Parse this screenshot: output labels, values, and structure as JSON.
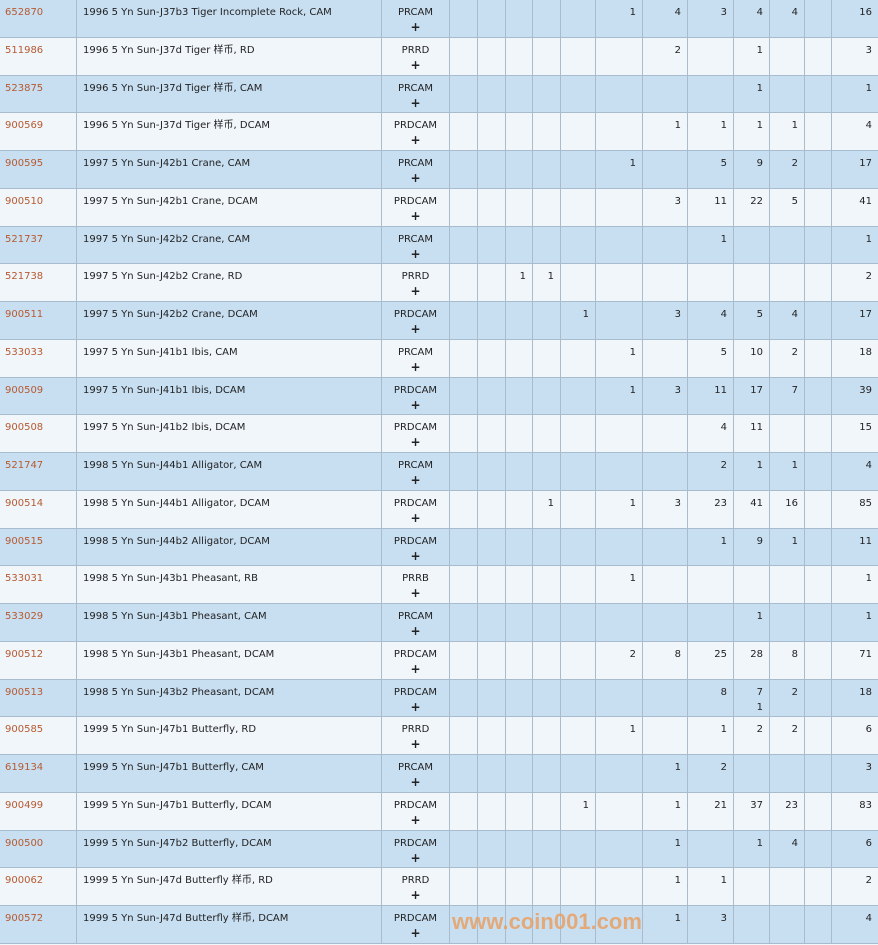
{
  "colors": {
    "row_odd": "#c8dff2",
    "row_even": "#f1f6fb",
    "link": "#b65a30",
    "border": "#a9bccd",
    "watermark": "#e8a063"
  },
  "rows": [
    {
      "id": "652870",
      "desc": "1996 5 Yn Sun-J37b3 Tiger Incomplete Rock, CAM",
      "des": "PRCAM",
      "plus": "+",
      "counts": [
        "",
        "",
        "",
        "",
        "",
        "1",
        "4",
        "3",
        "4",
        "4",
        ""
      ],
      "total": "16"
    },
    {
      "id": "511986",
      "desc": "1996 5 Yn Sun-J37d Tiger 样币, RD",
      "des": "PRRD",
      "plus": "+",
      "counts": [
        "",
        "",
        "",
        "",
        "",
        "",
        "2",
        "",
        "1",
        "",
        ""
      ],
      "total": "3"
    },
    {
      "id": "523875",
      "desc": "1996 5 Yn Sun-J37d Tiger 样币, CAM",
      "des": "PRCAM",
      "plus": "+",
      "counts": [
        "",
        "",
        "",
        "",
        "",
        "",
        "",
        "",
        "1",
        "",
        ""
      ],
      "total": "1"
    },
    {
      "id": "900569",
      "desc": "1996 5 Yn Sun-J37d Tiger 样币, DCAM",
      "des": "PRDCAM",
      "plus": "+",
      "counts": [
        "",
        "",
        "",
        "",
        "",
        "",
        "1",
        "1",
        "1",
        "1",
        ""
      ],
      "total": "4"
    },
    {
      "id": "900595",
      "desc": "1997 5 Yn Sun-J42b1 Crane, CAM",
      "des": "PRCAM",
      "plus": "+",
      "counts": [
        "",
        "",
        "",
        "",
        "",
        "1",
        "",
        "5",
        "9",
        "2",
        ""
      ],
      "total": "17"
    },
    {
      "id": "900510",
      "desc": "1997 5 Yn Sun-J42b1 Crane, DCAM",
      "des": "PRDCAM",
      "plus": "+",
      "counts": [
        "",
        "",
        "",
        "",
        "",
        "",
        "3",
        "11",
        "22",
        "5",
        ""
      ],
      "total": "41"
    },
    {
      "id": "521737",
      "desc": "1997 5 Yn Sun-J42b2 Crane, CAM",
      "des": "PRCAM",
      "plus": "+",
      "counts": [
        "",
        "",
        "",
        "",
        "",
        "",
        "",
        "1",
        "",
        "",
        ""
      ],
      "total": "1"
    },
    {
      "id": "521738",
      "desc": "1997 5 Yn Sun-J42b2 Crane, RD",
      "des": "PRRD",
      "plus": "+",
      "counts": [
        "",
        "",
        "1",
        "1",
        "",
        "",
        "",
        "",
        "",
        "",
        ""
      ],
      "total": "2"
    },
    {
      "id": "900511",
      "desc": "1997 5 Yn Sun-J42b2 Crane, DCAM",
      "des": "PRDCAM",
      "plus": "+",
      "counts": [
        "",
        "",
        "",
        "",
        "1",
        "",
        "3",
        "4",
        "5",
        "4",
        ""
      ],
      "total": "17"
    },
    {
      "id": "533033",
      "desc": "1997 5 Yn Sun-J41b1 Ibis, CAM",
      "des": "PRCAM",
      "plus": "+",
      "counts": [
        "",
        "",
        "",
        "",
        "",
        "1",
        "",
        "5",
        "10",
        "2",
        ""
      ],
      "total": "18"
    },
    {
      "id": "900509",
      "desc": "1997 5 Yn Sun-J41b1 Ibis, DCAM",
      "des": "PRDCAM",
      "plus": "+",
      "counts": [
        "",
        "",
        "",
        "",
        "",
        "1",
        "3",
        "11",
        "17",
        "7",
        ""
      ],
      "total": "39"
    },
    {
      "id": "900508",
      "desc": "1997 5 Yn Sun-J41b2 Ibis, DCAM",
      "des": "PRDCAM",
      "plus": "+",
      "counts": [
        "",
        "",
        "",
        "",
        "",
        "",
        "",
        "4",
        "11",
        "",
        ""
      ],
      "total": "15"
    },
    {
      "id": "521747",
      "desc": "1998 5 Yn Sun-J44b1 Alligator, CAM",
      "des": "PRCAM",
      "plus": "+",
      "counts": [
        "",
        "",
        "",
        "",
        "",
        "",
        "",
        "2",
        "1",
        "1",
        ""
      ],
      "total": "4"
    },
    {
      "id": "900514",
      "desc": "1998 5 Yn Sun-J44b1 Alligator, DCAM",
      "des": "PRDCAM",
      "plus": "+",
      "counts": [
        "",
        "",
        "",
        "1",
        "",
        "1",
        "3",
        "23",
        "41",
        "16",
        ""
      ],
      "total": "85"
    },
    {
      "id": "900515",
      "desc": "1998 5 Yn Sun-J44b2 Alligator, DCAM",
      "des": "PRDCAM",
      "plus": "+",
      "counts": [
        "",
        "",
        "",
        "",
        "",
        "",
        "",
        "1",
        "9",
        "1",
        ""
      ],
      "total": "11"
    },
    {
      "id": "533031",
      "desc": "1998 5 Yn Sun-J43b1 Pheasant, RB",
      "des": "PRRB",
      "plus": "+",
      "counts": [
        "",
        "",
        "",
        "",
        "",
        "1",
        "",
        "",
        "",
        "",
        ""
      ],
      "total": "1"
    },
    {
      "id": "533029",
      "desc": "1998 5 Yn Sun-J43b1 Pheasant, CAM",
      "des": "PRCAM",
      "plus": "+",
      "counts": [
        "",
        "",
        "",
        "",
        "",
        "",
        "",
        "",
        "1",
        "",
        ""
      ],
      "total": "1"
    },
    {
      "id": "900512",
      "desc": "1998 5 Yn Sun-J43b1 Pheasant, DCAM",
      "des": "PRDCAM",
      "plus": "+",
      "counts": [
        "",
        "",
        "",
        "",
        "",
        "2",
        "8",
        "25",
        "28",
        "8",
        ""
      ],
      "total": "71"
    },
    {
      "id": "900513",
      "desc": "1998 5 Yn Sun-J43b2 Pheasant, DCAM",
      "des": "PRDCAM",
      "plus": "+",
      "counts": [
        "",
        "",
        "",
        "",
        "",
        "",
        "",
        "8",
        "7\n1",
        "2",
        ""
      ],
      "total": "18"
    },
    {
      "id": "900585",
      "desc": "1999 5 Yn Sun-J47b1 Butterfly, RD",
      "des": "PRRD",
      "plus": "+",
      "counts": [
        "",
        "",
        "",
        "",
        "",
        "1",
        "",
        "1",
        "2",
        "2",
        ""
      ],
      "total": "6"
    },
    {
      "id": "619134",
      "desc": "1999 5 Yn Sun-J47b1 Butterfly, CAM",
      "des": "PRCAM",
      "plus": "+",
      "counts": [
        "",
        "",
        "",
        "",
        "",
        "",
        "1",
        "2",
        "",
        "",
        ""
      ],
      "total": "3"
    },
    {
      "id": "900499",
      "desc": "1999 5 Yn Sun-J47b1 Butterfly, DCAM",
      "des": "PRDCAM",
      "plus": "+",
      "counts": [
        "",
        "",
        "",
        "",
        "1",
        "",
        "1",
        "21",
        "37",
        "23",
        ""
      ],
      "total": "83"
    },
    {
      "id": "900500",
      "desc": "1999 5 Yn Sun-J47b2 Butterfly, DCAM",
      "des": "PRDCAM",
      "plus": "+",
      "counts": [
        "",
        "",
        "",
        "",
        "",
        "",
        "1",
        "",
        "1",
        "4",
        ""
      ],
      "total": "6"
    },
    {
      "id": "900062",
      "desc": "1999 5 Yn Sun-J47d Butterfly 样币, RD",
      "des": "PRRD",
      "plus": "+",
      "counts": [
        "",
        "",
        "",
        "",
        "",
        "",
        "1",
        "1",
        "",
        "",
        ""
      ],
      "total": "2"
    },
    {
      "id": "900572",
      "desc": "1999 5 Yn Sun-J47d Butterfly 样币, DCAM",
      "des": "PRDCAM",
      "plus": "+",
      "counts": [
        "",
        "",
        "",
        "",
        "",
        "",
        "1",
        "3",
        "",
        "",
        ""
      ],
      "total": "4"
    }
  ],
  "watermark": "www.coin001.com"
}
